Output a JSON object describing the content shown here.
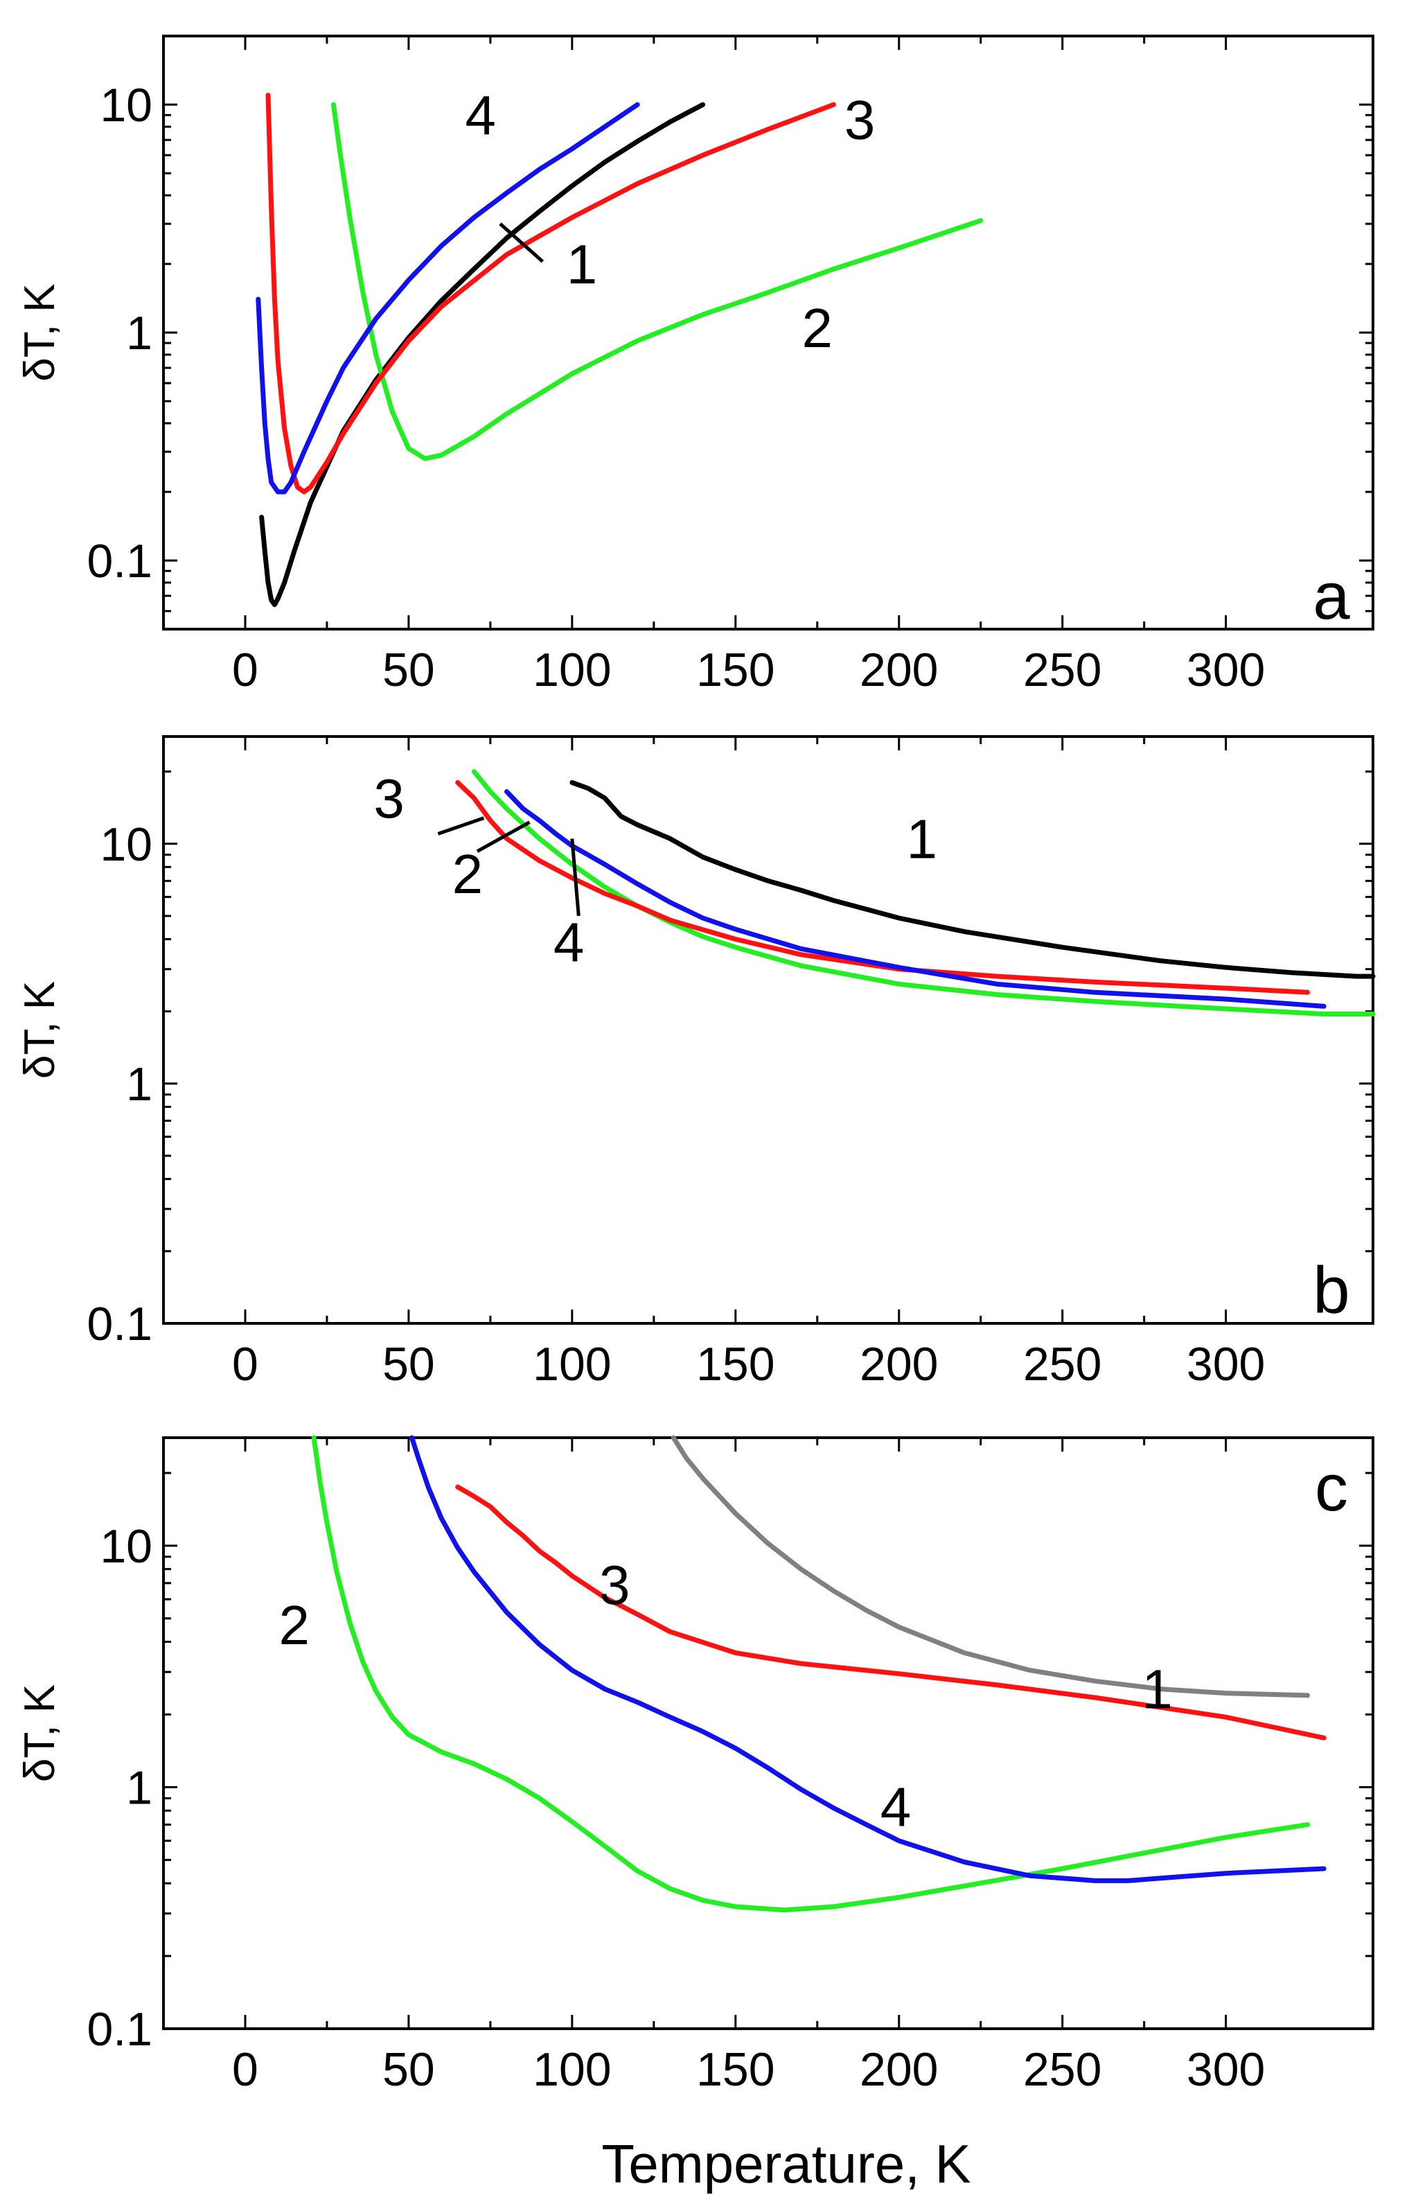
{
  "figure": {
    "xlabel": "Temperature, K"
  },
  "colors": {
    "1": "#000000",
    "1c": "#808080",
    "2": "#22ee22",
    "3": "#ff1111",
    "4": "#1111ee"
  },
  "chart_data": [
    {
      "type": "line",
      "panel": "a",
      "ylabel": "δT, K",
      "yscale": "log",
      "xlim": [
        -25,
        345
      ],
      "ylim": [
        0.05,
        20
      ],
      "xticks": [
        0,
        50,
        100,
        150,
        200,
        250,
        300
      ],
      "yticks": [
        0.1,
        1,
        10
      ],
      "xtick_labels": [
        "0",
        "50",
        "100",
        "150",
        "200",
        "250",
        "300"
      ],
      "ytick_labels": [
        "0.1",
        "1",
        "10"
      ],
      "labels": [
        {
          "text": "4",
          "series": "4",
          "x": 72,
          "y": 9.0
        },
        {
          "text": "1",
          "series": "1",
          "x": 103,
          "y": 2.0,
          "leader": [
            [
              78,
              3.0
            ],
            [
              91,
              2.05
            ]
          ]
        },
        {
          "text": "3",
          "series": "3",
          "x": 188,
          "y": 8.6
        },
        {
          "text": "2",
          "series": "2",
          "x": 175,
          "y": 1.05
        }
      ],
      "series": [
        {
          "name": "1",
          "color_key": "1",
          "x": [
            5,
            6,
            7,
            8,
            9,
            10,
            12,
            15,
            20,
            30,
            40,
            50,
            60,
            70,
            80,
            90,
            100,
            110,
            120,
            130,
            140
          ],
          "y": [
            0.155,
            0.11,
            0.08,
            0.067,
            0.064,
            0.068,
            0.08,
            0.11,
            0.18,
            0.37,
            0.62,
            0.95,
            1.38,
            1.9,
            2.6,
            3.4,
            4.4,
            5.6,
            6.9,
            8.4,
            10
          ]
        },
        {
          "name": "2",
          "color_key": "2",
          "x": [
            27,
            29,
            32,
            36,
            40,
            45,
            50,
            55,
            60,
            70,
            80,
            100,
            120,
            140,
            160,
            180,
            200,
            225
          ],
          "y": [
            10,
            6.2,
            3.2,
            1.5,
            0.8,
            0.45,
            0.31,
            0.28,
            0.29,
            0.35,
            0.44,
            0.66,
            0.92,
            1.2,
            1.5,
            1.9,
            2.35,
            3.1
          ]
        },
        {
          "name": "3",
          "color_key": "3",
          "x": [
            7,
            8,
            9,
            10,
            12,
            14,
            16,
            18,
            20,
            25,
            30,
            40,
            50,
            60,
            80,
            100,
            120,
            140,
            160,
            180
          ],
          "y": [
            11,
            3.5,
            1.4,
            0.75,
            0.38,
            0.26,
            0.21,
            0.2,
            0.21,
            0.27,
            0.36,
            0.6,
            0.92,
            1.3,
            2.2,
            3.2,
            4.5,
            6.0,
            7.8,
            10
          ]
        },
        {
          "name": "4",
          "color_key": "4",
          "x": [
            4,
            5,
            6,
            7,
            8,
            10,
            12,
            14,
            18,
            25,
            30,
            40,
            50,
            60,
            70,
            80,
            90,
            100,
            110,
            120
          ],
          "y": [
            1.4,
            0.7,
            0.4,
            0.28,
            0.22,
            0.2,
            0.2,
            0.22,
            0.3,
            0.5,
            0.7,
            1.15,
            1.7,
            2.4,
            3.2,
            4.1,
            5.2,
            6.4,
            8.0,
            10
          ]
        }
      ]
    },
    {
      "type": "line",
      "panel": "b",
      "ylabel": "δT, K",
      "yscale": "log",
      "xlim": [
        -25,
        345
      ],
      "ylim": [
        0.1,
        28
      ],
      "xticks": [
        0,
        50,
        100,
        150,
        200,
        250,
        300
      ],
      "yticks": [
        0.1,
        1,
        10
      ],
      "xtick_labels": [
        "0",
        "50",
        "100",
        "150",
        "200",
        "250",
        "300"
      ],
      "ytick_labels": [
        "0.1",
        "1",
        "10"
      ],
      "labels": [
        {
          "text": "1",
          "series": "1",
          "x": 207,
          "y": 10.5
        },
        {
          "text": "3",
          "series": "3",
          "x": 44,
          "y": 15.5,
          "leader": [
            [
              59,
              11.0
            ],
            [
              73,
              12.8
            ]
          ]
        },
        {
          "text": "2",
          "series": "2",
          "x": 68,
          "y": 7.5,
          "leader": [
            [
              71,
              9.3
            ],
            [
              87,
              12.3
            ]
          ]
        },
        {
          "text": "4",
          "series": "4",
          "x": 99,
          "y": 3.9,
          "leader": [
            [
              102,
              5.0
            ],
            [
              100,
              10.5
            ]
          ]
        }
      ],
      "series": [
        {
          "name": "1",
          "color_key": "1",
          "x": [
            100,
            105,
            110,
            115,
            120,
            130,
            140,
            150,
            160,
            170,
            180,
            200,
            220,
            250,
            280,
            300,
            320,
            340,
            345
          ],
          "y": [
            18,
            17,
            15.5,
            13,
            12,
            10.5,
            8.8,
            7.8,
            7.0,
            6.4,
            5.8,
            4.9,
            4.3,
            3.7,
            3.25,
            3.05,
            2.9,
            2.8,
            2.8
          ]
        },
        {
          "name": "2",
          "color_key": "2",
          "x": [
            70,
            75,
            80,
            90,
            100,
            110,
            120,
            130,
            140,
            150,
            170,
            200,
            230,
            260,
            300,
            330,
            345
          ],
          "y": [
            20,
            16.5,
            14,
            10.5,
            8.2,
            6.6,
            5.5,
            4.7,
            4.1,
            3.7,
            3.1,
            2.6,
            2.35,
            2.2,
            2.05,
            1.95,
            1.95
          ]
        },
        {
          "name": "3",
          "color_key": "3",
          "x": [
            65,
            70,
            75,
            80,
            90,
            100,
            110,
            120,
            130,
            150,
            170,
            200,
            230,
            260,
            300,
            325
          ],
          "y": [
            18,
            15.5,
            12.5,
            10.5,
            8.5,
            7.2,
            6.2,
            5.5,
            4.8,
            4.0,
            3.45,
            3.0,
            2.8,
            2.65,
            2.5,
            2.4
          ]
        },
        {
          "name": "4",
          "color_key": "4",
          "x": [
            80,
            85,
            90,
            95,
            100,
            110,
            120,
            130,
            140,
            150,
            170,
            200,
            230,
            260,
            300,
            330
          ],
          "y": [
            16.5,
            14,
            12.5,
            11,
            9.8,
            8.2,
            6.8,
            5.7,
            4.9,
            4.4,
            3.65,
            3.05,
            2.6,
            2.4,
            2.25,
            2.1
          ]
        }
      ]
    },
    {
      "type": "line",
      "panel": "c",
      "ylabel": "δT, K",
      "yscale": "log",
      "xlim": [
        -25,
        345
      ],
      "ylim": [
        0.1,
        28
      ],
      "xticks": [
        0,
        50,
        100,
        150,
        200,
        250,
        300
      ],
      "yticks": [
        0.1,
        1,
        10
      ],
      "xtick_labels": [
        "0",
        "50",
        "100",
        "150",
        "200",
        "250",
        "300"
      ],
      "ytick_labels": [
        "0.1",
        "1",
        "10"
      ],
      "labels": [
        {
          "text": "1",
          "series": "1c",
          "x": 279,
          "y": 2.55
        },
        {
          "text": "2",
          "series": "2",
          "x": 15,
          "y": 4.7
        },
        {
          "text": "3",
          "series": "3",
          "x": 113,
          "y": 6.9
        },
        {
          "text": "4",
          "series": "4",
          "x": 199,
          "y": 0.83
        }
      ],
      "series": [
        {
          "name": "1",
          "color_key": "1c",
          "x": [
            131,
            135,
            140,
            150,
            160,
            170,
            180,
            190,
            200,
            220,
            240,
            260,
            280,
            300,
            325
          ],
          "y": [
            28,
            23,
            19,
            13.6,
            10.2,
            8.0,
            6.5,
            5.4,
            4.6,
            3.6,
            3.05,
            2.75,
            2.55,
            2.45,
            2.4
          ]
        },
        {
          "name": "2",
          "color_key": "2",
          "x": [
            21,
            23,
            25,
            28,
            32,
            36,
            40,
            45,
            50,
            60,
            70,
            80,
            90,
            100,
            110,
            120,
            130,
            140,
            150,
            165,
            180,
            200,
            220,
            250,
            280,
            300,
            325
          ],
          "y": [
            28,
            18,
            12.5,
            7.8,
            4.8,
            3.3,
            2.5,
            1.95,
            1.65,
            1.4,
            1.25,
            1.08,
            0.9,
            0.72,
            0.57,
            0.45,
            0.38,
            0.34,
            0.32,
            0.31,
            0.32,
            0.35,
            0.39,
            0.46,
            0.55,
            0.62,
            0.7
          ]
        },
        {
          "name": "3",
          "color_key": "3",
          "x": [
            65,
            70,
            75,
            80,
            85,
            90,
            95,
            100,
            110,
            120,
            130,
            150,
            170,
            200,
            230,
            260,
            300,
            330
          ],
          "y": [
            17.5,
            16,
            14.5,
            12.5,
            11,
            9.5,
            8.5,
            7.5,
            6.1,
            5.2,
            4.4,
            3.6,
            3.25,
            2.95,
            2.65,
            2.35,
            1.95,
            1.6
          ]
        },
        {
          "name": "4",
          "color_key": "4",
          "x": [
            51,
            53,
            56,
            60,
            65,
            70,
            80,
            90,
            100,
            110,
            120,
            130,
            140,
            150,
            160,
            170,
            180,
            190,
            200,
            220,
            240,
            260,
            270,
            280,
            300,
            330
          ],
          "y": [
            28,
            23,
            17.5,
            13,
            9.8,
            7.8,
            5.3,
            3.9,
            3.05,
            2.55,
            2.25,
            1.95,
            1.7,
            1.45,
            1.2,
            0.98,
            0.82,
            0.7,
            0.6,
            0.49,
            0.43,
            0.41,
            0.41,
            0.42,
            0.44,
            0.46
          ]
        }
      ]
    }
  ]
}
